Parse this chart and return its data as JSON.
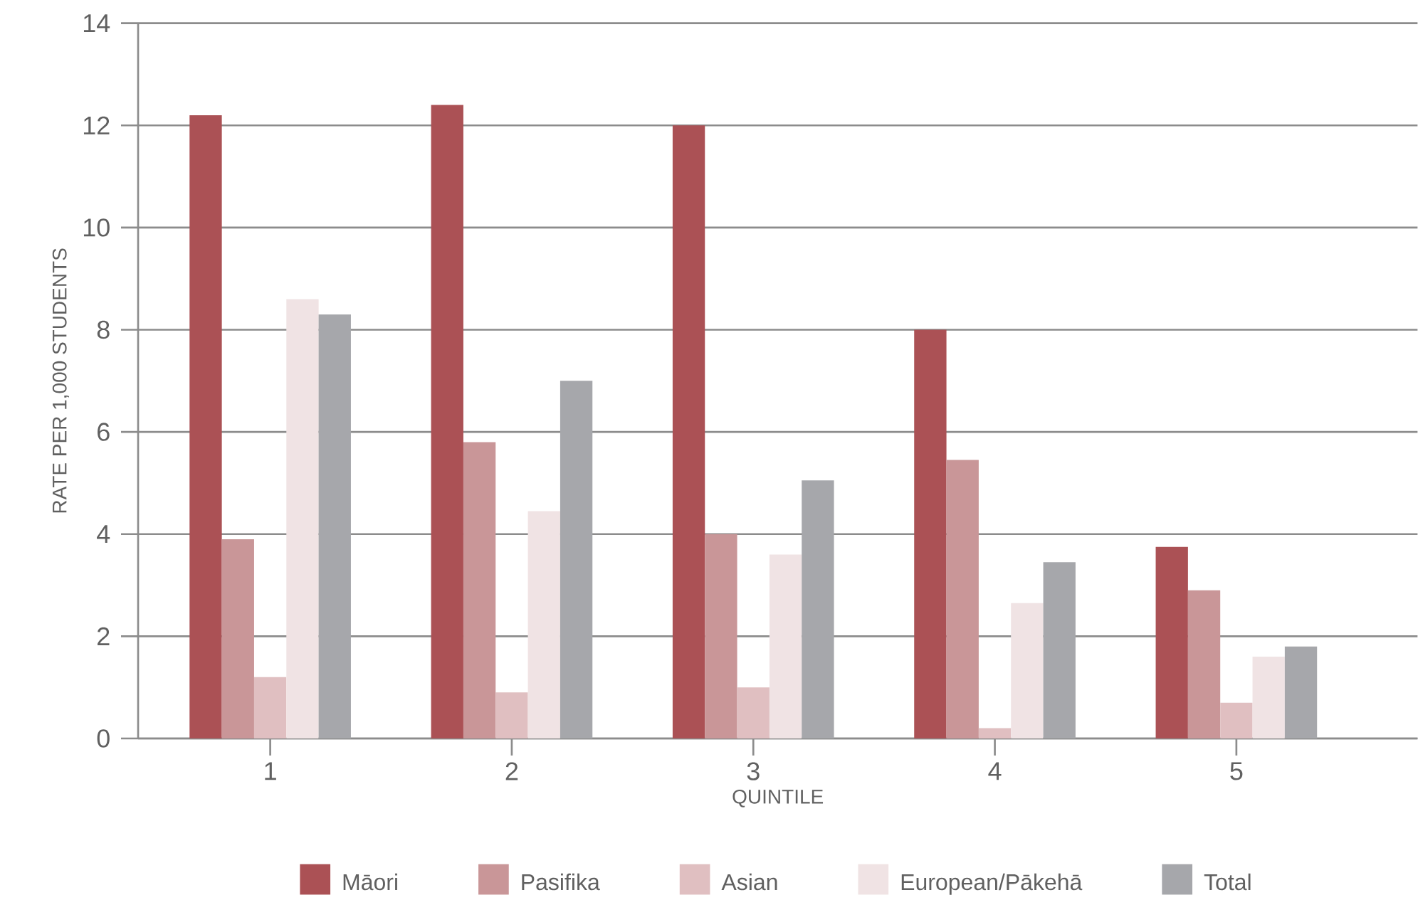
{
  "chart_data": {
    "type": "bar",
    "xlabel": "QUINTILE",
    "ylabel": "RATE PER 1,000 STUDENTS",
    "categories": [
      "1",
      "2",
      "3",
      "4",
      "5"
    ],
    "series": [
      {
        "name": "Māori",
        "color": "#ab5155",
        "values": [
          12.2,
          12.4,
          12.0,
          8.0,
          3.75
        ]
      },
      {
        "name": "Pasifika",
        "color": "#c99698",
        "values": [
          3.9,
          5.8,
          4.0,
          5.45,
          2.9
        ]
      },
      {
        "name": "Asian",
        "color": "#e0bfc1",
        "values": [
          1.2,
          0.9,
          1.0,
          0.2,
          0.7
        ]
      },
      {
        "name": "European/Pākehā",
        "color": "#f0e3e4",
        "values": [
          8.6,
          4.45,
          3.6,
          2.65,
          1.6
        ]
      },
      {
        "name": "Total",
        "color": "#a6a7ab",
        "values": [
          8.3,
          7.0,
          5.05,
          3.45,
          1.8
        ]
      }
    ],
    "ylim": [
      0,
      14
    ],
    "yticks": [
      0,
      2,
      4,
      6,
      8,
      10,
      12,
      14
    ],
    "grid": "y",
    "legend": "bottom"
  }
}
